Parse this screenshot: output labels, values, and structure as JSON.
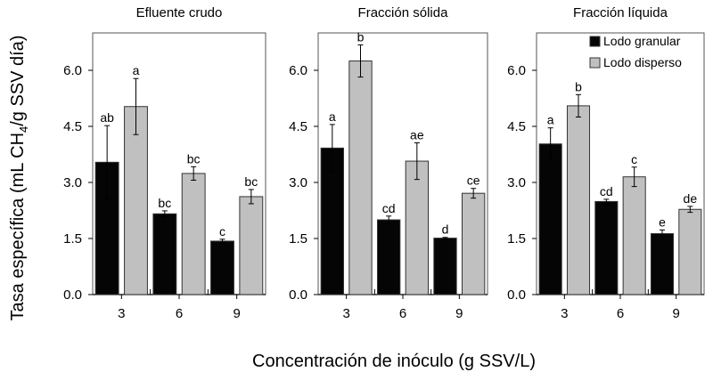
{
  "chart_data": [
    {
      "type": "bar",
      "title": "Efluente crudo",
      "categories": [
        "3",
        "6",
        "9"
      ],
      "series": [
        {
          "name": "Lodo granular",
          "values": [
            3.54,
            2.16,
            1.43
          ],
          "errors": [
            0.98,
            0.08,
            0.05
          ],
          "letters": [
            "ab",
            "bc",
            "c"
          ]
        },
        {
          "name": "Lodo disperso",
          "values": [
            5.03,
            3.24,
            2.62
          ],
          "errors": [
            0.75,
            0.18,
            0.19
          ],
          "letters": [
            "a",
            "bc",
            "bc"
          ]
        }
      ],
      "ylim": [
        0,
        7
      ],
      "yticks": [
        "0.0",
        "1.5",
        "3.0",
        "4.5",
        "6.0"
      ]
    },
    {
      "type": "bar",
      "title": "Fracción sólida",
      "categories": [
        "3",
        "6",
        "9"
      ],
      "series": [
        {
          "name": "Lodo granular",
          "values": [
            3.92,
            2.0,
            1.51
          ],
          "errors": [
            0.63,
            0.1,
            0.02
          ],
          "letters": [
            "a",
            "cd",
            "d"
          ]
        },
        {
          "name": "Lodo disperso",
          "values": [
            6.25,
            3.57,
            2.71
          ],
          "errors": [
            0.43,
            0.49,
            0.13
          ],
          "letters": [
            "b",
            "ae",
            "ce"
          ]
        }
      ],
      "ylim": [
        0,
        7
      ],
      "yticks": [
        "0.0",
        "1.5",
        "3.0",
        "4.5",
        "6.0"
      ]
    },
    {
      "type": "bar",
      "title": "Fracción líquida",
      "categories": [
        "3",
        "6",
        "9"
      ],
      "series": [
        {
          "name": "Lodo granular",
          "values": [
            4.03,
            2.49,
            1.63
          ],
          "errors": [
            0.43,
            0.06,
            0.1
          ],
          "letters": [
            "a",
            "cd",
            "e"
          ]
        },
        {
          "name": "Lodo disperso",
          "values": [
            5.05,
            3.15,
            2.28
          ],
          "errors": [
            0.3,
            0.26,
            0.08
          ],
          "letters": [
            "b",
            "c",
            "de"
          ]
        }
      ],
      "ylim": [
        0,
        7
      ],
      "yticks": [
        "0.0",
        "1.5",
        "3.0",
        "4.5",
        "6.0"
      ],
      "legend": "top-right"
    }
  ],
  "ylabel_pre": "Tasa específica (mL CH",
  "ylabel_sub": "4",
  "ylabel_post": "/g SSV día)",
  "xlabel": "Concentración de inóculo (g SSV/L)",
  "colors": {
    "granular": "#050505",
    "disperso": "#c0c0c0"
  }
}
